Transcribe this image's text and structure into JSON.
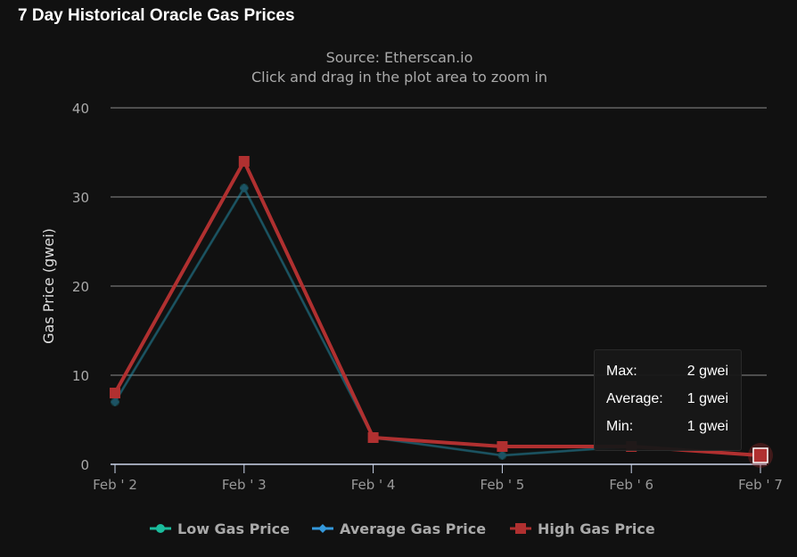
{
  "header": {
    "title": "7 Day Historical Oracle Gas Prices"
  },
  "chart_data": {
    "type": "line",
    "title": "",
    "subtitle": [
      "Source: Etherscan.io",
      "Click and drag in the plot area to zoom in"
    ],
    "xlabel": "",
    "ylabel": "Gas Price (gwei)",
    "categories": [
      "Feb ' 2",
      "Feb ' 3",
      "Feb ' 4",
      "Feb ' 5",
      "Feb ' 6",
      "Feb ' 7"
    ],
    "ylim": [
      0,
      40
    ],
    "yticks": [
      0,
      10,
      20,
      30,
      40
    ],
    "grid": true,
    "legend_position": "bottom-center",
    "series": [
      {
        "name": "Low Gas Price",
        "color": "#1abc9c",
        "marker": "circle",
        "values": [
          7,
          31,
          3,
          1,
          2,
          1
        ]
      },
      {
        "name": "Average Gas Price",
        "color": "#3498db",
        "marker": "diamond",
        "values": [
          7,
          31,
          3,
          1,
          2,
          1
        ]
      },
      {
        "name": "High Gas Price",
        "color": "#b03030",
        "marker": "square",
        "values": [
          8,
          34,
          3,
          2,
          2,
          1
        ]
      }
    ],
    "tooltip": {
      "rows": [
        {
          "label": "Max:",
          "value": "2 gwei"
        },
        {
          "label": "Average:",
          "value": "1 gwei"
        },
        {
          "label": "Min:",
          "value": "1 gwei"
        }
      ]
    }
  }
}
